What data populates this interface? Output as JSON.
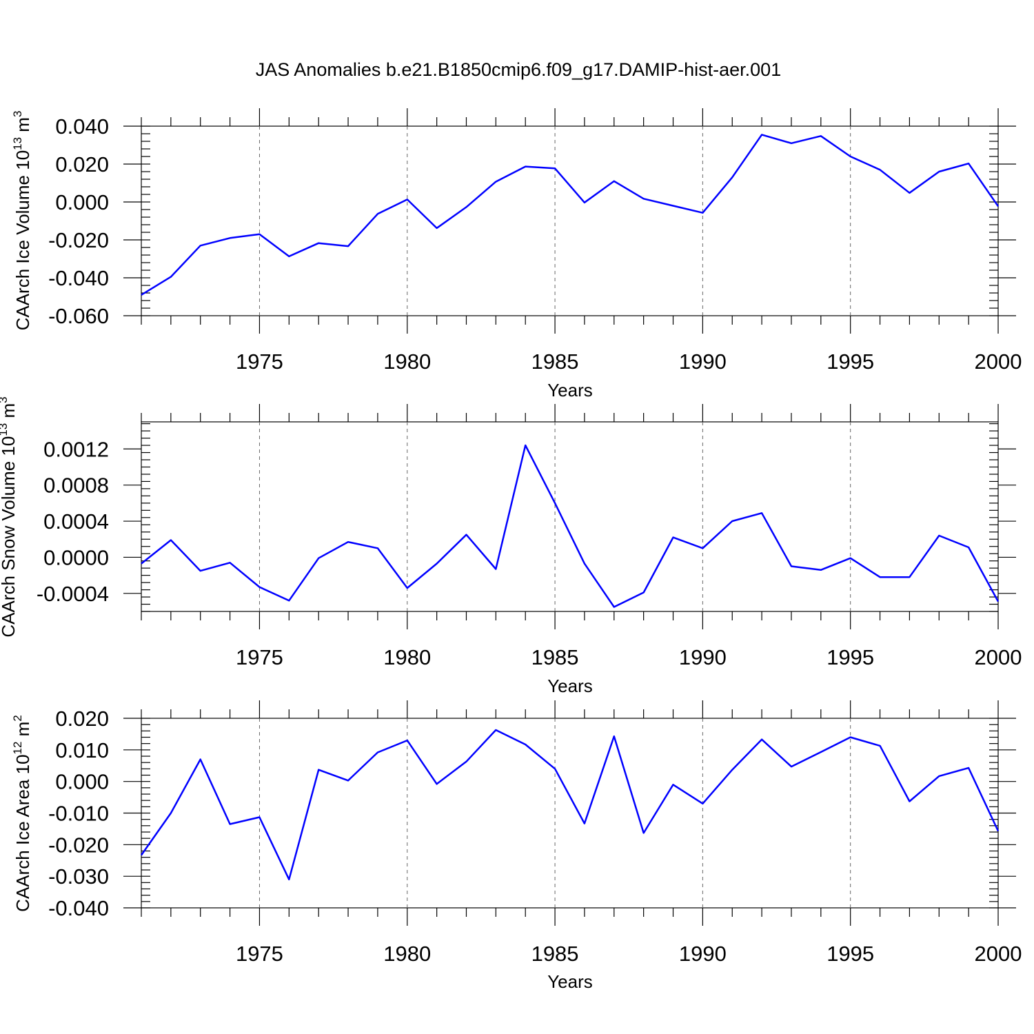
{
  "figure": {
    "title": "JAS Anomalies b.e21.B1850cmip6.f09_g17.DAMIP-hist-aer.001"
  },
  "chart_data": [
    {
      "type": "line",
      "ylabel": "CAArch Ice Volume 10",
      "ylabel_exp": "13",
      "ylabel_unit": " m",
      "ylabel_unit_exp": "3",
      "xlabel": "Years",
      "xlim": [
        1971,
        2000
      ],
      "ylim": [
        -0.06,
        0.04
      ],
      "x_ticks": [
        1975,
        1980,
        1985,
        1990,
        1995,
        2000
      ],
      "x_tick_labels": [
        "1975",
        "1980",
        "1985",
        "1990",
        "1995",
        "2000"
      ],
      "y_ticks": [
        -0.06,
        -0.04,
        -0.02,
        0.0,
        0.02,
        0.04
      ],
      "y_tick_labels": [
        "-0.060",
        "-0.040",
        "-0.020",
        "0.000",
        "0.020",
        "0.040"
      ],
      "y_minor_step": 0.004,
      "grid": "dashed vertical at major x ticks",
      "color": "#0000ff",
      "x": [
        1971,
        1972,
        1973,
        1974,
        1975,
        1976,
        1977,
        1978,
        1979,
        1980,
        1981,
        1982,
        1983,
        1984,
        1985,
        1986,
        1987,
        1988,
        1989,
        1990,
        1991,
        1992,
        1993,
        1994,
        1995,
        1996,
        1997,
        1998,
        1999,
        2000
      ],
      "values": [
        -0.049,
        -0.0395,
        -0.023,
        -0.019,
        -0.017,
        -0.0287,
        -0.0217,
        -0.0233,
        -0.0063,
        0.0013,
        -0.0138,
        -0.0027,
        0.0107,
        0.0187,
        0.0177,
        -0.0003,
        0.011,
        0.0017,
        -0.002,
        -0.0057,
        0.013,
        0.0355,
        0.031,
        0.0348,
        0.024,
        0.017,
        0.0048,
        0.016,
        0.0203,
        -0.0023
      ]
    },
    {
      "type": "line",
      "ylabel": "CAArch Snow Volume 10",
      "ylabel_exp": "13",
      "ylabel_unit": " m",
      "ylabel_unit_exp": "3",
      "xlabel": "Years",
      "xlim": [
        1971,
        2000
      ],
      "ylim": [
        -0.0006,
        0.0015
      ],
      "x_ticks": [
        1975,
        1980,
        1985,
        1990,
        1995,
        2000
      ],
      "x_tick_labels": [
        "1975",
        "1980",
        "1985",
        "1990",
        "1995",
        "2000"
      ],
      "y_ticks": [
        -0.0004,
        0.0,
        0.0004,
        0.0008,
        0.0012
      ],
      "y_tick_labels": [
        "-0.0004",
        "0.0000",
        "0.0004",
        "0.0008",
        "0.0012"
      ],
      "y_minor_step": 8e-05,
      "grid": "dashed vertical at major x ticks",
      "color": "#0000ff",
      "x": [
        1971,
        1972,
        1973,
        1974,
        1975,
        1976,
        1977,
        1978,
        1979,
        1980,
        1981,
        1982,
        1983,
        1984,
        1985,
        1986,
        1987,
        1988,
        1989,
        1990,
        1991,
        1992,
        1993,
        1994,
        1995,
        1996,
        1997,
        1998,
        1999,
        2000
      ],
      "values": [
        -7e-05,
        0.00019,
        -0.00015,
        -6e-05,
        -0.00033,
        -0.00048,
        -1e-05,
        0.00017,
        0.0001,
        -0.00034,
        -7e-05,
        0.00025,
        -0.00013,
        0.00124,
        0.0006,
        -7e-05,
        -0.00055,
        -0.00039,
        0.00022,
        0.0001,
        0.0004,
        0.00049,
        -0.0001,
        -0.00014,
        -1e-05,
        -0.00022,
        -0.00022,
        0.00024,
        0.00011,
        -0.00049
      ]
    },
    {
      "type": "line",
      "ylabel": "CAArch Ice Area 10",
      "ylabel_exp": "12",
      "ylabel_unit": " m",
      "ylabel_unit_exp": "2",
      "xlabel": "Years",
      "xlim": [
        1971,
        2000
      ],
      "ylim": [
        -0.04,
        0.02
      ],
      "x_ticks": [
        1975,
        1980,
        1985,
        1990,
        1995,
        2000
      ],
      "x_tick_labels": [
        "1975",
        "1980",
        "1985",
        "1990",
        "1995",
        "2000"
      ],
      "y_ticks": [
        -0.04,
        -0.03,
        -0.02,
        -0.01,
        0.0,
        0.01,
        0.02
      ],
      "y_tick_labels": [
        "-0.040",
        "-0.030",
        "-0.020",
        "-0.010",
        "0.000",
        "0.010",
        "0.020"
      ],
      "y_minor_step": 0.002,
      "grid": "dashed vertical at major x ticks",
      "color": "#0000ff",
      "x": [
        1971,
        1972,
        1973,
        1974,
        1975,
        1976,
        1977,
        1978,
        1979,
        1980,
        1981,
        1982,
        1983,
        1984,
        1985,
        1986,
        1987,
        1988,
        1989,
        1990,
        1991,
        1992,
        1993,
        1994,
        1995,
        1996,
        1997,
        1998,
        1999,
        2000
      ],
      "values": [
        -0.0233,
        -0.01,
        0.007,
        -0.0135,
        -0.0113,
        -0.031,
        0.0037,
        0.0003,
        0.0092,
        0.013,
        -0.0008,
        0.0063,
        0.0163,
        0.0117,
        0.004,
        -0.0133,
        0.0143,
        -0.0163,
        -0.001,
        -0.007,
        0.0037,
        0.0133,
        0.0047,
        0.0093,
        0.014,
        0.0113,
        -0.0063,
        0.0017,
        0.0043,
        -0.0157
      ]
    }
  ]
}
